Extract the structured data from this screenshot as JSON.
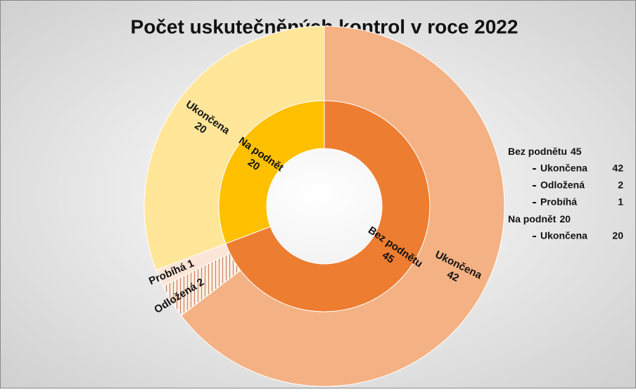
{
  "chart_data": {
    "type": "sunburst",
    "title": "Počet uskutečněných kontrol v roce 2022",
    "groups": [
      {
        "name": "Bez podnětu",
        "value": 45,
        "color": "#ED7D31",
        "children": [
          {
            "name": "Ukončena",
            "value": 42,
            "color": "#F4B183"
          },
          {
            "name": "Odložená",
            "value": 2,
            "color": "#FBE5D6",
            "hatch": true
          },
          {
            "name": "Probíhá",
            "value": 1,
            "color": "#FBE5D6"
          }
        ]
      },
      {
        "name": "Na podnět",
        "value": 20,
        "color": "#FFC000",
        "children": [
          {
            "name": "Ukončena",
            "value": 20,
            "color": "#FFE699"
          }
        ]
      }
    ]
  }
}
